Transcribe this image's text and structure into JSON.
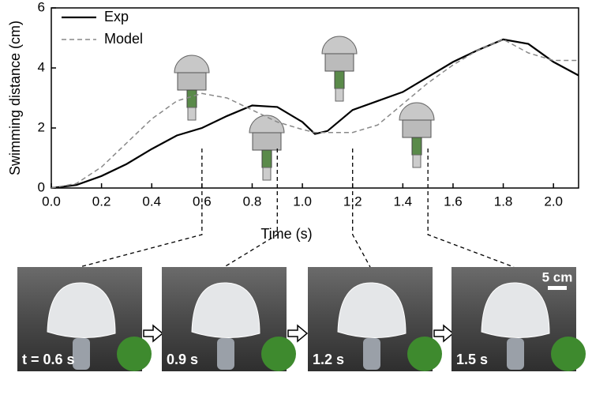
{
  "chart_data": {
    "type": "line",
    "x_label": "Time (s)",
    "y_label": "Swimming distance (cm)",
    "x": [
      0,
      0.1,
      0.2,
      0.3,
      0.4,
      0.5,
      0.6,
      0.7,
      0.8,
      0.9,
      1.0,
      1.05,
      1.1,
      1.2,
      1.3,
      1.4,
      1.5,
      1.6,
      1.7,
      1.8,
      1.9,
      2.0,
      2.1
    ],
    "series": [
      {
        "name": "Exp",
        "color": "#000000",
        "dash": false,
        "values": [
          0,
          0.1,
          0.4,
          0.8,
          1.3,
          1.75,
          2.0,
          2.4,
          2.75,
          2.7,
          2.2,
          1.8,
          1.9,
          2.6,
          2.9,
          3.2,
          3.7,
          4.2,
          4.6,
          4.95,
          4.8,
          4.2,
          3.75
        ]
      },
      {
        "name": "Model",
        "color": "#888888",
        "dash": true,
        "values": [
          0,
          0.15,
          0.7,
          1.5,
          2.3,
          2.9,
          3.15,
          3.0,
          2.6,
          2.2,
          1.95,
          1.85,
          1.85,
          1.85,
          2.1,
          2.8,
          3.5,
          4.1,
          4.6,
          4.95,
          4.5,
          4.25,
          4.25
        ]
      }
    ],
    "xlim": [
      0,
      2.1
    ],
    "xticks": [
      {
        "value": 0,
        "label": "0.0"
      },
      0.2,
      0.4,
      0.6,
      0.8,
      {
        "value": 1,
        "label": "1.0"
      },
      1.2,
      1.4,
      1.6,
      1.8,
      {
        "value": 2,
        "label": "2.0"
      }
    ],
    "ylim": [
      0,
      6
    ],
    "yticks": [
      0,
      2,
      4,
      6
    ],
    "legend": "upper-left"
  },
  "photos": [
    "t = 0.6 s",
    "0.9 s",
    "1.2 s",
    "1.5 s"
  ],
  "scale_bar": "5 cm"
}
